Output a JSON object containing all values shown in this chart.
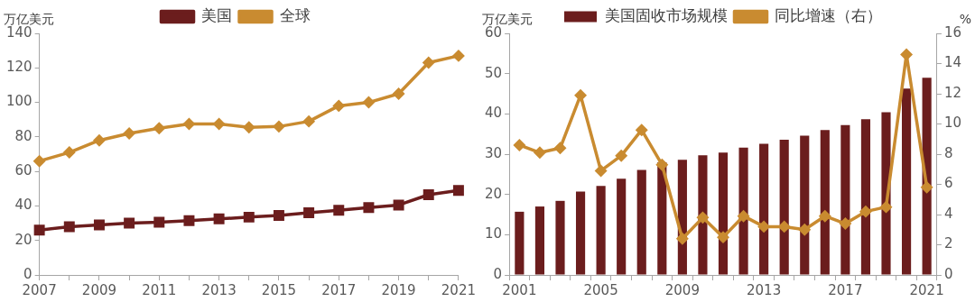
{
  "chart_data": [
    {
      "type": "line",
      "ylabel": "万亿美元",
      "categories": [
        "2007",
        null,
        "2009",
        null,
        "2011",
        null,
        "2013",
        null,
        "2015",
        null,
        "2017",
        null,
        "2019",
        null,
        "2021"
      ],
      "series": [
        {
          "name": "美国",
          "color": "#6b1d1d",
          "marker": "square",
          "values": [
            26,
            28,
            29,
            30,
            30.5,
            31.5,
            32.5,
            33.5,
            34.5,
            36,
            37.5,
            39,
            40.5,
            46.5,
            49
          ]
        },
        {
          "name": "全球",
          "color": "#c98b30",
          "marker": "diamond",
          "values": [
            66,
            71,
            78,
            82,
            85,
            87.5,
            87.5,
            85.5,
            86,
            89,
            98,
            100,
            105,
            123,
            127
          ]
        }
      ],
      "ylim": [
        0,
        140
      ],
      "yticks": [
        0,
        20,
        40,
        60,
        80,
        100,
        120,
        140
      ],
      "grid": false,
      "legend": "top"
    },
    {
      "type": "bar",
      "ylabel": "万亿美元",
      "y2label": "%",
      "categories": [
        "2001",
        null,
        null,
        null,
        "2005",
        null,
        null,
        null,
        "2009",
        null,
        null,
        null,
        "2013",
        null,
        null,
        null,
        "2017",
        null,
        null,
        null,
        "2021"
      ],
      "series": [
        {
          "name": "美国固收市场规模",
          "color": "#6b1d1d",
          "values": [
            15.7,
            17,
            18.4,
            20.7,
            22.1,
            23.9,
            26.1,
            28,
            28.6,
            29.7,
            30.4,
            31.6,
            32.6,
            33.6,
            34.6,
            36,
            37.2,
            38.7,
            40.4,
            46.3,
            49
          ]
        },
        {
          "name": "同比增速（右）",
          "type": "line",
          "axis": "y2",
          "color": "#c98b30",
          "marker": "diamond",
          "values": [
            8.6,
            8.1,
            8.4,
            11.9,
            6.9,
            7.9,
            9.6,
            7.3,
            2.4,
            3.8,
            2.5,
            3.9,
            3.2,
            3.2,
            3.0,
            3.9,
            3.4,
            4.2,
            4.5,
            14.6,
            5.8
          ]
        }
      ],
      "ylim": [
        0,
        60
      ],
      "yticks": [
        0,
        10,
        20,
        30,
        40,
        50,
        60
      ],
      "y2lim": [
        0,
        16
      ],
      "y2ticks": [
        0,
        2,
        4,
        6,
        8,
        10,
        12,
        14,
        16
      ],
      "grid": false,
      "legend": "top"
    }
  ]
}
